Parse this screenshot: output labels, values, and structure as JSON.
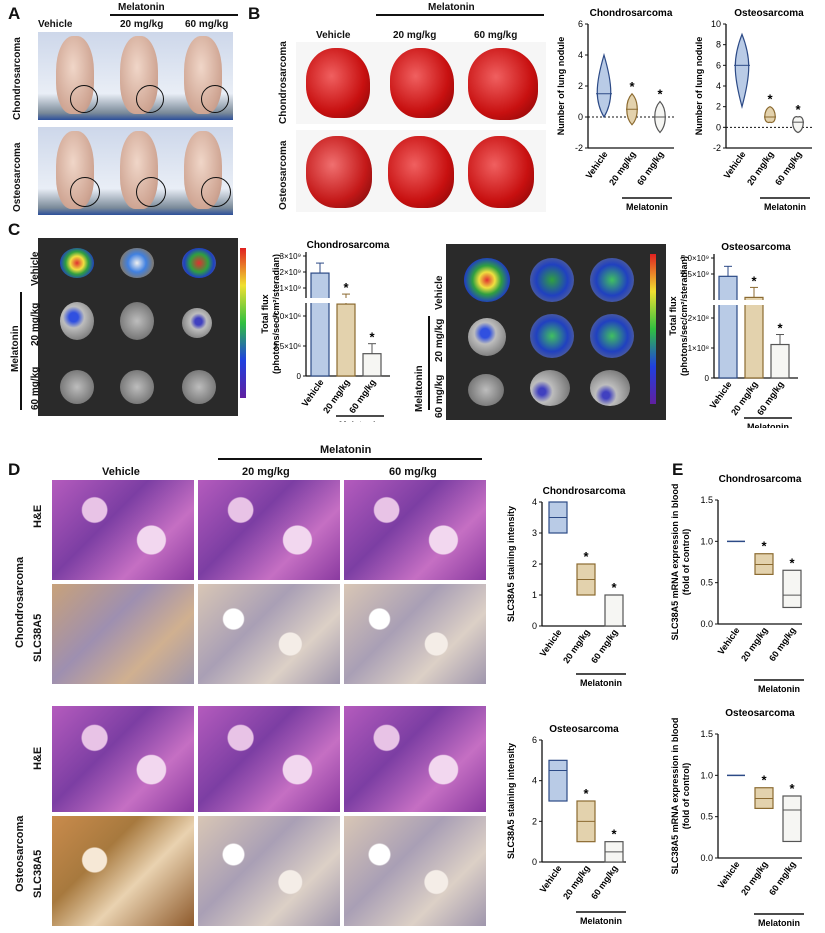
{
  "panels": {
    "A": "A",
    "B": "B",
    "C": "C",
    "D": "D",
    "E": "E"
  },
  "groups": {
    "vehicle": "Vehicle",
    "melatonin": "Melatonin",
    "d20": "20 mg/kg",
    "d60": "60 mg/kg"
  },
  "tumors": {
    "chondro": "Chondrosarcoma",
    "osteo": "Osteosarcoma"
  },
  "stains": {
    "he": "H&E",
    "slc": "SLC38A5"
  },
  "colorbar_tick": "Total flux",
  "chart_data": [
    {
      "id": "B-chondro",
      "type": "violin",
      "title": "Chondrosarcoma",
      "ylabel": "Number of lung nodule",
      "ylim": [
        -2,
        6
      ],
      "yticks": [
        -2,
        0,
        2,
        4,
        6
      ],
      "categories": [
        "Vehicle",
        "20 mg/kg",
        "60 mg/kg"
      ],
      "medians": [
        1.5,
        0.5,
        0
      ],
      "ranges": [
        [
          0,
          4
        ],
        [
          -0.5,
          1.5
        ],
        [
          -1,
          1
        ]
      ],
      "significance": [
        "",
        "*",
        "*"
      ],
      "group_label": "Melatonin"
    },
    {
      "id": "B-osteo",
      "type": "violin",
      "title": "Osteosarcoma",
      "ylabel": "Number of lung nodule",
      "ylim": [
        -2,
        10
      ],
      "yticks": [
        -2,
        0,
        2,
        4,
        6,
        8,
        10
      ],
      "categories": [
        "Vehicle",
        "20 mg/kg",
        "60 mg/kg"
      ],
      "medians": [
        6,
        1,
        0.5
      ],
      "ranges": [
        [
          2,
          9
        ],
        [
          0.5,
          2
        ],
        [
          -0.5,
          1
        ]
      ],
      "significance": [
        "",
        "*",
        "*"
      ],
      "group_label": "Melatonin"
    },
    {
      "id": "C-chondro",
      "type": "bar",
      "title": "Chondrosarcoma",
      "ylabel": "Total flux",
      "ylabel2": "(photons/sec/cm²/steradian)",
      "yticks_top": [
        "3×10⁹",
        "2×10⁹",
        "1×10⁹"
      ],
      "yticks_bottom": [
        "5.0×10⁶",
        "2.5×10⁶",
        "0"
      ],
      "categories": [
        "Vehicle",
        "20 mg/kg",
        "60 mg/kg"
      ],
      "values_display": [
        0.83,
        0.58,
        0.18
      ],
      "significance": [
        "",
        "*",
        "*"
      ],
      "group_label": "Melatonin"
    },
    {
      "id": "C-osteo",
      "type": "bar",
      "title": "Osteosarcoma",
      "ylabel": "Total flux",
      "ylabel2": "(photons/sec/cm²/steradian)",
      "yticks_top": [
        "5.0×10⁹",
        "2.5×10⁹"
      ],
      "yticks_bottom": [
        "2×10⁸",
        "1×10⁸",
        "0"
      ],
      "categories": [
        "Vehicle",
        "20 mg/kg",
        "60 mg/kg"
      ],
      "values_display": [
        0.82,
        0.65,
        0.27
      ],
      "significance": [
        "",
        "*",
        "*"
      ],
      "group_label": "Melatonin"
    },
    {
      "id": "D-chondro",
      "type": "floating-box",
      "title": "Chondrosarcoma",
      "ylabel": "SLC38A5 staining intensity",
      "ylim": [
        0,
        4
      ],
      "yticks": [
        0,
        1,
        2,
        3,
        4
      ],
      "categories": [
        "Vehicle",
        "20 mg/kg",
        "60 mg/kg"
      ],
      "boxes": [
        [
          3,
          4,
          3.5
        ],
        [
          1,
          2,
          1.5
        ],
        [
          0,
          1,
          1
        ]
      ],
      "significance": [
        "",
        "*",
        "*"
      ],
      "group_label": "Melatonin"
    },
    {
      "id": "D-osteo",
      "type": "floating-box",
      "title": "Osteosarcoma",
      "ylabel": "SLC38A5 staining intensity",
      "ylim": [
        0,
        6
      ],
      "yticks": [
        0,
        2,
        4,
        6
      ],
      "categories": [
        "Vehicle",
        "20 mg/kg",
        "60 mg/kg"
      ],
      "boxes": [
        [
          3,
          5,
          4.5
        ],
        [
          1,
          3,
          2
        ],
        [
          0,
          1,
          0.5
        ]
      ],
      "significance": [
        "",
        "*",
        "*"
      ],
      "group_label": "Melatonin"
    },
    {
      "id": "E-chondro",
      "type": "floating-box",
      "title": "Chondrosarcoma",
      "ylabel": "SLC38A5 mRNA expression in blood",
      "ylabel2": "(fold of control)",
      "ylim": [
        0,
        1.5
      ],
      "yticks": [
        "0.0",
        "0.5",
        "1.0",
        "1.5"
      ],
      "categories": [
        "Vehicle",
        "20 mg/kg",
        "60 mg/kg"
      ],
      "boxes": [
        [
          1,
          1,
          1
        ],
        [
          0.6,
          0.85,
          0.72
        ],
        [
          0.2,
          0.65,
          0.35
        ]
      ],
      "significance": [
        "",
        "*",
        "*"
      ],
      "group_label": "Melatonin"
    },
    {
      "id": "E-osteo",
      "type": "floating-box",
      "title": "Osteosarcoma",
      "ylabel": "SLC38A5 mRNA expression in blood",
      "ylabel2": "(fold of control)",
      "ylim": [
        0,
        1.5
      ],
      "yticks": [
        "0.0",
        "0.5",
        "1.0",
        "1.5"
      ],
      "categories": [
        "Vehicle",
        "20 mg/kg",
        "60 mg/kg"
      ],
      "boxes": [
        [
          1,
          1,
          1
        ],
        [
          0.6,
          0.85,
          0.72
        ],
        [
          0.2,
          0.75,
          0.58
        ]
      ],
      "significance": [
        "",
        "*",
        "*"
      ],
      "group_label": "Melatonin"
    }
  ]
}
